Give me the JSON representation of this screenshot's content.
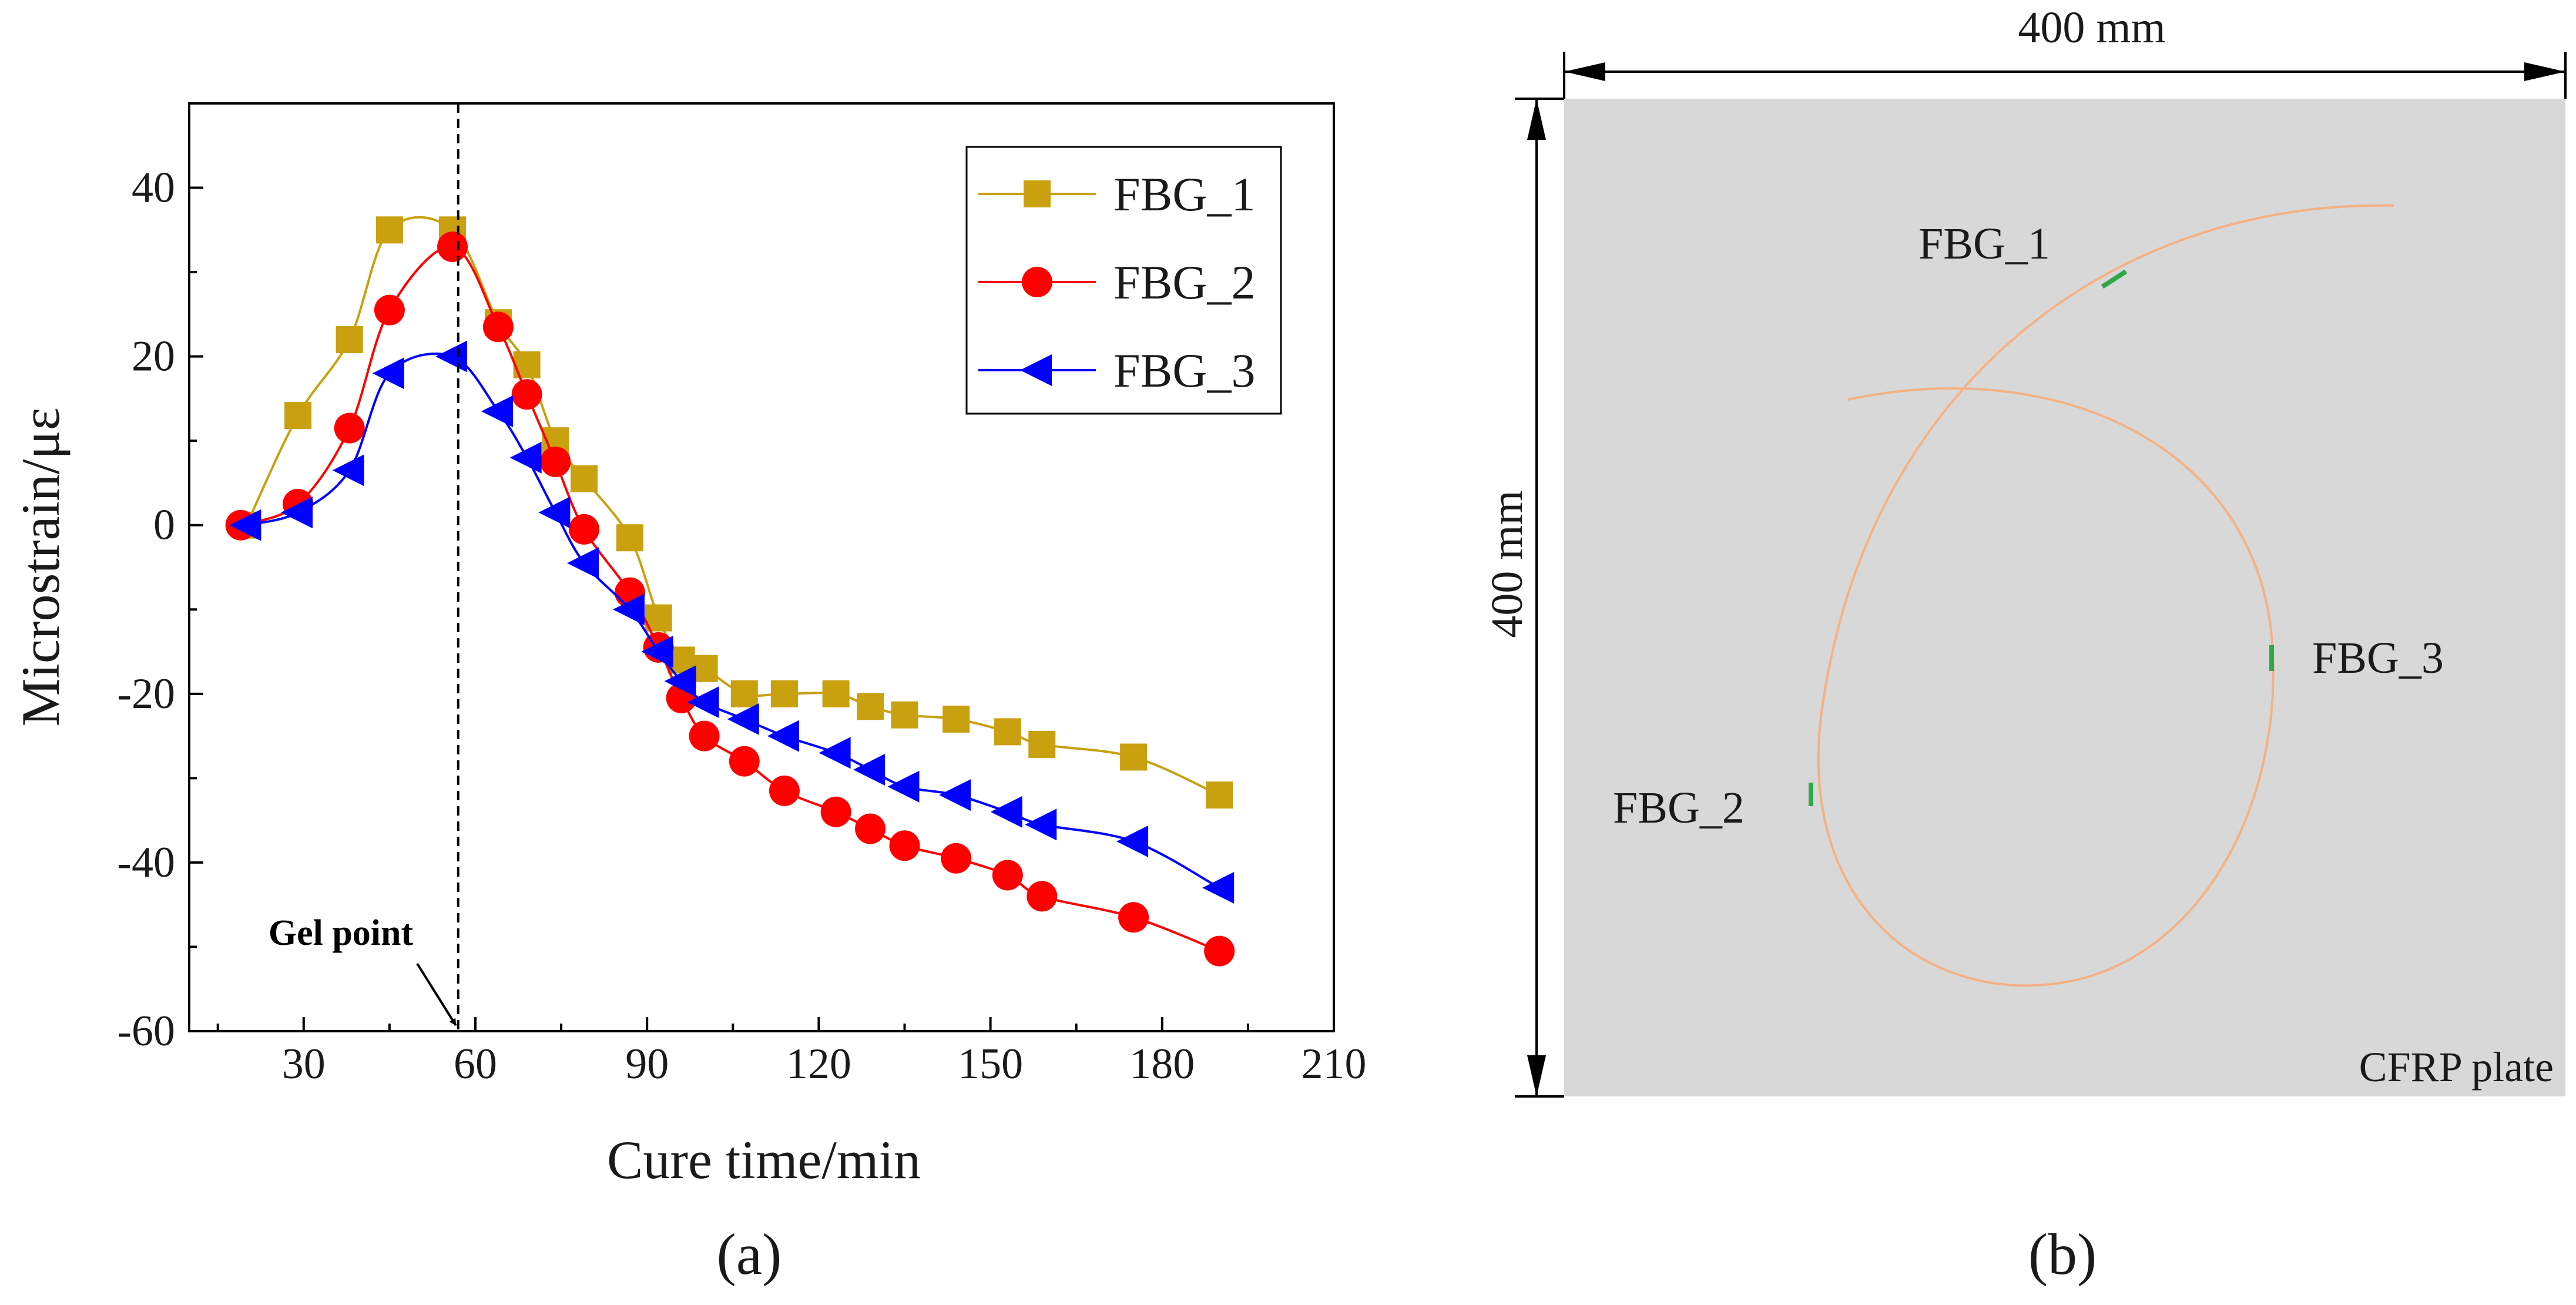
{
  "panel_a": {
    "label": "(a)",
    "annotation": "Gel point"
  },
  "panel_b": {
    "label": "(b)",
    "width_dimension": "400 mm",
    "height_dimension": "400 mm",
    "plate_label": "CFRP plate",
    "sensor_labels": [
      "FBG_1",
      "FBG_2",
      "FBG_3"
    ],
    "colors": {
      "plate": "#d8d8d8",
      "fiber": "#f4b183",
      "sensor": "#2ea84a"
    }
  },
  "chart_data": {
    "type": "line",
    "title": "",
    "xlabel": "Cure time/min",
    "ylabel": "Microstrain/με",
    "xlim": [
      10,
      210
    ],
    "ylim": [
      -60,
      50
    ],
    "xticks": [
      30,
      60,
      90,
      120,
      150,
      180,
      210
    ],
    "yticks": [
      -60,
      -40,
      -20,
      0,
      20,
      40
    ],
    "grid": false,
    "legend_position": "top-right",
    "gel_point_x": 57,
    "series": [
      {
        "name": "FBG_1",
        "color": "#c9a00e",
        "marker": "square",
        "x": [
          20,
          29,
          38,
          45,
          56,
          64,
          69,
          74,
          79,
          87,
          92,
          96,
          100,
          107,
          114,
          123,
          129,
          135,
          144,
          153,
          159,
          175,
          190
        ],
        "y": [
          0,
          13,
          22,
          35,
          35,
          24,
          19,
          10,
          5.5,
          -1.5,
          -11,
          -16,
          -17,
          -20,
          -20,
          -20,
          -21.5,
          -22.5,
          -23,
          -24.5,
          -26,
          -27.5,
          -32
        ]
      },
      {
        "name": "FBG_2",
        "color": "#ff0000",
        "marker": "circle",
        "x": [
          19,
          29,
          38,
          45,
          56,
          64,
          69,
          74,
          79,
          87,
          92,
          96,
          100,
          107,
          114,
          123,
          129,
          135,
          144,
          153,
          159,
          175,
          190
        ],
        "y": [
          0,
          2.5,
          11.5,
          25.5,
          33,
          23.5,
          15.5,
          7.5,
          -0.5,
          -8,
          -14.5,
          -20.5,
          -25,
          -28,
          -31.5,
          -34,
          -36,
          -38,
          -39.5,
          -41.5,
          -44,
          -46.5,
          -50.5
        ]
      },
      {
        "name": "FBG_3",
        "color": "#0000ff",
        "marker": "triangle-left",
        "x": [
          20,
          29,
          38,
          45,
          56,
          64,
          69,
          74,
          79,
          87,
          92,
          96,
          100,
          107,
          114,
          123,
          129,
          135,
          144,
          153,
          159,
          175,
          190
        ],
        "y": [
          0,
          1.5,
          6.5,
          18,
          20,
          13.5,
          8,
          1.5,
          -4.5,
          -10,
          -15,
          -18.5,
          -21,
          -23,
          -25,
          -27,
          -29,
          -31,
          -32,
          -34,
          -35.5,
          -37.5,
          -43
        ]
      }
    ]
  }
}
